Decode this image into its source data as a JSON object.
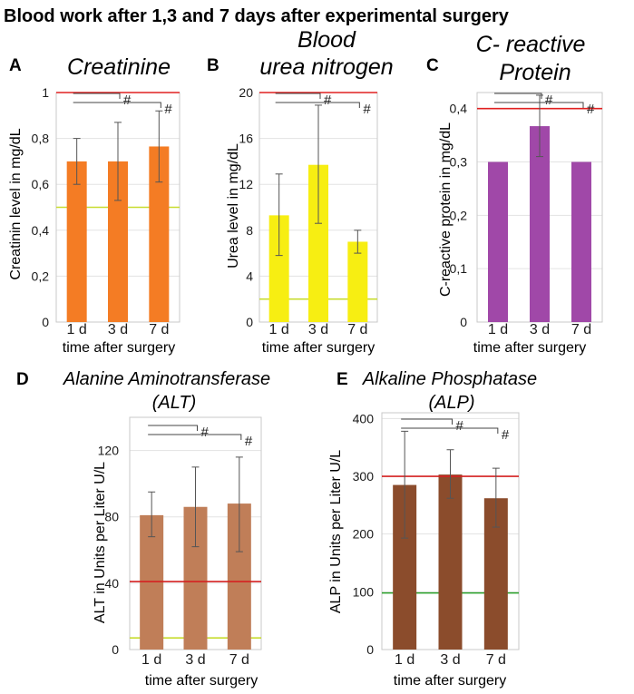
{
  "figure_title": "Blood work after 1,3 and 7 days after experimental surgery",
  "chart_data": [
    {
      "id": "A",
      "letter": "A",
      "type": "bar",
      "title": [
        "Creatinine"
      ],
      "ylabel": "Creatinin level in mg/dL",
      "xlabel": "time after surgery",
      "categories": [
        "1 d",
        "3 d",
        "7 d"
      ],
      "values": [
        0.7,
        0.7,
        0.765
      ],
      "err_low": [
        0.6,
        0.53,
        0.61
      ],
      "err_high": [
        0.8,
        0.87,
        0.92
      ],
      "ylim": [
        0,
        1
      ],
      "yticks": [
        0,
        0.2,
        0.4,
        0.6,
        0.8,
        1
      ],
      "ytick_labels": [
        "0",
        "0,2",
        "0,4",
        "0,6",
        "0,8",
        "1"
      ],
      "ref_upper": 1.0,
      "ref_lower": 0.5,
      "bar_color": "#f47c24",
      "upper_ref_color": "#e02020",
      "lower_ref_color": "#c8dc30",
      "significance": [
        {
          "from": "1 d",
          "to": "3 d",
          "label": "#"
        },
        {
          "from": "1 d",
          "to": "7 d",
          "label": "#"
        }
      ]
    },
    {
      "id": "B",
      "letter": "B",
      "type": "bar",
      "title": [
        "Blood",
        "urea nitrogen"
      ],
      "ylabel": "Urea level in mg/dL",
      "xlabel": "time after surgery",
      "categories": [
        "1 d",
        "3 d",
        "7 d"
      ],
      "values": [
        9.3,
        13.7,
        7.0
      ],
      "err_low": [
        5.8,
        8.6,
        6.0
      ],
      "err_high": [
        12.9,
        18.9,
        8.0
      ],
      "ylim": [
        0,
        20
      ],
      "yticks": [
        0,
        4,
        8,
        12,
        16,
        20
      ],
      "ytick_labels": [
        "0",
        "4",
        "8",
        "12",
        "16",
        "20"
      ],
      "ref_upper": 20,
      "ref_lower": 2,
      "bar_color": "#f7ee12",
      "upper_ref_color": "#e02020",
      "lower_ref_color": "#c8dc30",
      "significance": [
        {
          "from": "1 d",
          "to": "3 d",
          "label": "#"
        },
        {
          "from": "1 d",
          "to": "7 d",
          "label": "#"
        }
      ]
    },
    {
      "id": "C",
      "letter": "C",
      "type": "bar",
      "title": [
        "C- reactive",
        "Protein"
      ],
      "ylabel": "C-reactive protein in mg/dL",
      "xlabel": "time after surgery",
      "categories": [
        "1 d",
        "3 d",
        "7 d"
      ],
      "values": [
        0.3,
        0.367,
        0.3
      ],
      "err_low": [
        0.3,
        0.31,
        0.3
      ],
      "err_high": [
        0.3,
        0.425,
        0.3
      ],
      "ylim": [
        0,
        0.43
      ],
      "yticks": [
        0,
        0.1,
        0.2,
        0.3,
        0.4
      ],
      "ytick_labels": [
        "0",
        "0,1",
        "0,2",
        "0,3",
        "0,4"
      ],
      "ref_upper": 0.4,
      "ref_lower": null,
      "bar_color": "#a048a8",
      "upper_ref_color": "#e02020",
      "lower_ref_color": null,
      "significance": [
        {
          "from": "1 d",
          "to": "3 d",
          "label": "#"
        },
        {
          "from": "1 d",
          "to": "7 d",
          "label": "#"
        }
      ]
    },
    {
      "id": "D",
      "letter": "D",
      "type": "bar",
      "title": [
        "Alanine Aminotransferase",
        "(ALT)"
      ],
      "ylabel": "ALT in Units per Liter U/L",
      "xlabel": "time after surgery",
      "categories": [
        "1 d",
        "3 d",
        "7 d"
      ],
      "values": [
        81,
        86,
        88
      ],
      "err_low": [
        68,
        62,
        59
      ],
      "err_high": [
        95,
        110,
        116
      ],
      "ylim": [
        0,
        140
      ],
      "yticks": [
        0,
        40,
        80,
        120
      ],
      "ytick_labels": [
        "0",
        "40",
        "80",
        "120"
      ],
      "ref_upper": 41,
      "ref_lower": 7,
      "bar_color": "#c07e58",
      "upper_ref_color": "#d42020",
      "lower_ref_color": "#c8dc30",
      "significance": [
        {
          "from": "1 d",
          "to": "3 d",
          "label": "#"
        },
        {
          "from": "1 d",
          "to": "7 d",
          "label": "#"
        }
      ]
    },
    {
      "id": "E",
      "letter": "E",
      "type": "bar",
      "title": [
        "Alkaline Phosphatase",
        "(ALP)"
      ],
      "ylabel": "ALP in Units per Liter U/L",
      "xlabel": "time after surgery",
      "categories": [
        "1 d",
        "3 d",
        "7 d"
      ],
      "values": [
        285,
        303,
        262
      ],
      "err_low": [
        193,
        262,
        212
      ],
      "err_high": [
        378,
        346,
        314
      ],
      "ylim": [
        0,
        410
      ],
      "yticks": [
        0,
        100,
        200,
        300,
        400
      ],
      "ytick_labels": [
        "0",
        "100",
        "200",
        "300",
        "400"
      ],
      "ref_upper": 300,
      "ref_lower": 98,
      "bar_color": "#8b4c2c",
      "upper_ref_color": "#d42020",
      "lower_ref_color": "#28a028",
      "significance": [
        {
          "from": "1 d",
          "to": "3 d",
          "label": "#"
        },
        {
          "from": "1 d",
          "to": "7 d",
          "label": "#"
        }
      ]
    }
  ]
}
